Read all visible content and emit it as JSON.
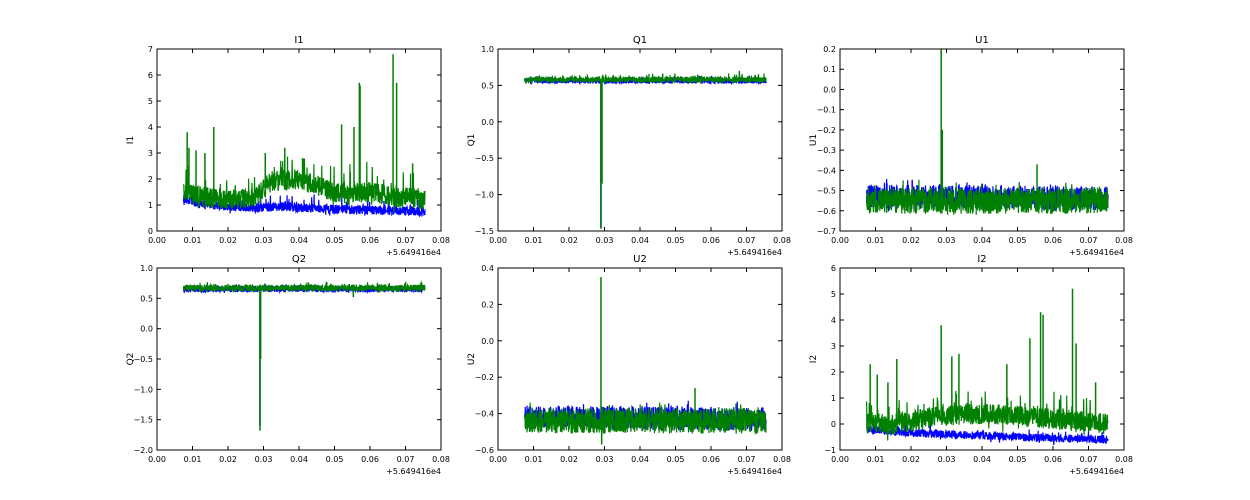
{
  "chart_data": [
    {
      "type": "line",
      "title": "I1",
      "ylabel": "I1",
      "xlabel": "",
      "xlim": [
        0,
        0.08
      ],
      "ylim": [
        0,
        7
      ],
      "xticks": [
        "0.00",
        "0.01",
        "0.02",
        "0.03",
        "0.04",
        "0.05",
        "0.06",
        "0.07",
        "0.08"
      ],
      "yticks": [
        "0",
        "1",
        "2",
        "3",
        "4",
        "5",
        "6",
        "7"
      ],
      "offset_label": "+5.649416e4",
      "x_range": [
        0.0075,
        0.0755
      ],
      "series": [
        {
          "color": "#0000ff",
          "baseline": [
            [
              0.0075,
              1.25
            ],
            [
              0.012,
              1.05
            ],
            [
              0.02,
              0.95
            ],
            [
              0.028,
              0.9
            ],
            [
              0.035,
              0.95
            ],
            [
              0.045,
              0.85
            ],
            [
              0.055,
              0.82
            ],
            [
              0.065,
              0.78
            ],
            [
              0.0755,
              0.75
            ]
          ],
          "band": 0.35,
          "noise": 0.6,
          "spikes": []
        },
        {
          "color": "#008000",
          "baseline": [
            [
              0.0075,
              1.5
            ],
            [
              0.012,
              1.35
            ],
            [
              0.02,
              1.2
            ],
            [
              0.028,
              1.3
            ],
            [
              0.032,
              1.9
            ],
            [
              0.04,
              2.0
            ],
            [
              0.046,
              1.7
            ],
            [
              0.052,
              1.4
            ],
            [
              0.06,
              1.5
            ],
            [
              0.068,
              1.3
            ],
            [
              0.0755,
              1.2
            ]
          ],
          "band": 0.8,
          "noise": 1.2,
          "spikes": [
            [
              0.0085,
              3.8
            ],
            [
              0.009,
              3.2
            ],
            [
              0.011,
              3.1
            ],
            [
              0.0135,
              3.0
            ],
            [
              0.016,
              4.0
            ],
            [
              0.0305,
              3.0
            ],
            [
              0.036,
              3.2
            ],
            [
              0.041,
              2.8
            ],
            [
              0.052,
              4.1
            ],
            [
              0.0555,
              4.0
            ],
            [
              0.057,
              5.7
            ],
            [
              0.0572,
              5.6
            ],
            [
              0.0665,
              6.8
            ],
            [
              0.0675,
              5.7
            ],
            [
              0.072,
              2.6
            ]
          ]
        }
      ]
    },
    {
      "type": "line",
      "title": "Q1",
      "ylabel": "Q1",
      "xlabel": "",
      "xlim": [
        0,
        0.08
      ],
      "ylim": [
        -1.5,
        1.0
      ],
      "xticks": [
        "0.00",
        "0.01",
        "0.02",
        "0.03",
        "0.04",
        "0.05",
        "0.06",
        "0.07",
        "0.08"
      ],
      "yticks": [
        "−1.5",
        "−1.0",
        "−0.5",
        "0.0",
        "0.5",
        "1.0"
      ],
      "offset_label": "+5.649416e4",
      "x_range": [
        0.0075,
        0.0755
      ],
      "series": [
        {
          "color": "#0000ff",
          "baseline": [
            [
              0.0075,
              0.56
            ],
            [
              0.0755,
              0.56
            ]
          ],
          "band": 0.07,
          "noise": 0.06,
          "spikes": [
            [
              0.029,
              -1.45
            ]
          ]
        },
        {
          "color": "#008000",
          "baseline": [
            [
              0.0075,
              0.58
            ],
            [
              0.0755,
              0.58
            ]
          ],
          "band": 0.08,
          "noise": 0.08,
          "spikes": [
            [
              0.029,
              -1.47
            ],
            [
              0.0293,
              -0.85
            ],
            [
              0.068,
              0.7
            ]
          ]
        }
      ]
    },
    {
      "type": "line",
      "title": "U1",
      "ylabel": "U1",
      "xlabel": "",
      "xlim": [
        0,
        0.08
      ],
      "ylim": [
        -0.7,
        0.2
      ],
      "xticks": [
        "0.00",
        "0.01",
        "0.02",
        "0.03",
        "0.04",
        "0.05",
        "0.06",
        "0.07",
        "0.08"
      ],
      "yticks": [
        "−0.7",
        "−0.6",
        "−0.5",
        "−0.4",
        "−0.3",
        "−0.2",
        "−0.1",
        "0.0",
        "0.1",
        "0.2"
      ],
      "offset_label": "+5.649416e4",
      "x_range": [
        0.0075,
        0.0755
      ],
      "series": [
        {
          "color": "#0000ff",
          "baseline": [
            [
              0.0075,
              -0.53
            ],
            [
              0.0755,
              -0.54
            ]
          ],
          "band": 0.12,
          "noise": 0.05,
          "spikes": []
        },
        {
          "color": "#008000",
          "baseline": [
            [
              0.0075,
              -0.55
            ],
            [
              0.0755,
              -0.55
            ]
          ],
          "band": 0.13,
          "noise": 0.07,
          "spikes": [
            [
              0.0285,
              0.2
            ],
            [
              0.0288,
              -0.2
            ],
            [
              0.0555,
              -0.37
            ]
          ]
        }
      ]
    },
    {
      "type": "line",
      "title": "Q2",
      "ylabel": "Q2",
      "xlabel": "",
      "xlim": [
        0,
        0.08
      ],
      "ylim": [
        -2.0,
        1.0
      ],
      "xticks": [
        "0.00",
        "0.01",
        "0.02",
        "0.03",
        "0.04",
        "0.05",
        "0.06",
        "0.07",
        "0.08"
      ],
      "yticks": [
        "−2.0",
        "−1.5",
        "−1.0",
        "−0.5",
        "0.0",
        "0.5",
        "1.0"
      ],
      "offset_label": "+5.649416e4",
      "x_range": [
        0.0075,
        0.0755
      ],
      "series": [
        {
          "color": "#0000ff",
          "baseline": [
            [
              0.0075,
              0.65
            ],
            [
              0.0755,
              0.65
            ]
          ],
          "band": 0.1,
          "noise": 0.06,
          "spikes": [
            [
              0.029,
              -1.6
            ]
          ]
        },
        {
          "color": "#008000",
          "baseline": [
            [
              0.0075,
              0.67
            ],
            [
              0.0755,
              0.67
            ]
          ],
          "band": 0.11,
          "noise": 0.09,
          "spikes": [
            [
              0.029,
              -1.68
            ],
            [
              0.0292,
              -0.5
            ],
            [
              0.0553,
              0.52
            ]
          ]
        }
      ]
    },
    {
      "type": "line",
      "title": "U2",
      "ylabel": "U2",
      "xlabel": "",
      "xlim": [
        0,
        0.08
      ],
      "ylim": [
        -0.6,
        0.4
      ],
      "xticks": [
        "0.00",
        "0.01",
        "0.02",
        "0.03",
        "0.04",
        "0.05",
        "0.06",
        "0.07",
        "0.08"
      ],
      "yticks": [
        "−0.6",
        "−0.4",
        "−0.2",
        "0.0",
        "0.2",
        "0.4"
      ],
      "offset_label": "+5.649416e4",
      "x_range": [
        0.0075,
        0.0755
      ],
      "series": [
        {
          "color": "#0000ff",
          "baseline": [
            [
              0.0075,
              -0.42
            ],
            [
              0.0755,
              -0.43
            ]
          ],
          "band": 0.13,
          "noise": 0.05,
          "spikes": []
        },
        {
          "color": "#008000",
          "baseline": [
            [
              0.0075,
              -0.44
            ],
            [
              0.0755,
              -0.44
            ]
          ],
          "band": 0.14,
          "noise": 0.07,
          "spikes": [
            [
              0.029,
              0.35
            ],
            [
              0.0292,
              -0.57
            ],
            [
              0.0555,
              -0.26
            ]
          ]
        }
      ]
    },
    {
      "type": "line",
      "title": "I2",
      "ylabel": "I2",
      "xlabel": "",
      "xlim": [
        0,
        0.08
      ],
      "ylim": [
        -1,
        6
      ],
      "xticks": [
        "0.00",
        "0.01",
        "0.02",
        "0.03",
        "0.04",
        "0.05",
        "0.06",
        "0.07",
        "0.08"
      ],
      "yticks": [
        "−1",
        "0",
        "1",
        "2",
        "3",
        "4",
        "5",
        "6"
      ],
      "offset_label": "+5.649416e4",
      "x_range": [
        0.0075,
        0.0755
      ],
      "series": [
        {
          "color": "#0000ff",
          "baseline": [
            [
              0.0075,
              -0.2
            ],
            [
              0.02,
              -0.35
            ],
            [
              0.04,
              -0.45
            ],
            [
              0.06,
              -0.55
            ],
            [
              0.0755,
              -0.6
            ]
          ],
          "band": 0.3,
          "noise": 0.4,
          "spikes": []
        },
        {
          "color": "#008000",
          "baseline": [
            [
              0.0075,
              0.1
            ],
            [
              0.015,
              0.0
            ],
            [
              0.028,
              0.3
            ],
            [
              0.04,
              0.4
            ],
            [
              0.05,
              0.3
            ],
            [
              0.06,
              0.2
            ],
            [
              0.0755,
              0.0
            ]
          ],
          "band": 0.8,
          "noise": 1.0,
          "spikes": [
            [
              0.0085,
              2.3
            ],
            [
              0.0105,
              1.9
            ],
            [
              0.0135,
              1.6
            ],
            [
              0.016,
              2.5
            ],
            [
              0.0285,
              3.8
            ],
            [
              0.0315,
              2.6
            ],
            [
              0.0335,
              2.7
            ],
            [
              0.047,
              2.3
            ],
            [
              0.0535,
              3.3
            ],
            [
              0.0565,
              4.3
            ],
            [
              0.0572,
              4.2
            ],
            [
              0.0655,
              5.2
            ],
            [
              0.0665,
              3.1
            ],
            [
              0.072,
              1.6
            ]
          ]
        }
      ]
    }
  ]
}
